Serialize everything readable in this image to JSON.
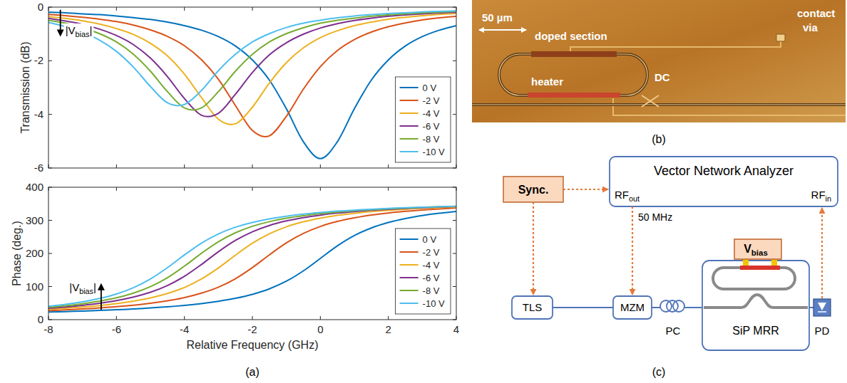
{
  "chart_data": [
    {
      "type": "line",
      "y_label": "Transmission (dB)",
      "x": [
        -8,
        -7.5,
        -7,
        -6.5,
        -6,
        -5.5,
        -5,
        -4.5,
        -4,
        -3.5,
        -3,
        -2.5,
        -2,
        -1.5,
        -1,
        -0.5,
        0,
        0.5,
        1,
        1.5,
        2,
        2.5,
        3,
        3.5,
        4
      ],
      "xlim": [
        -8,
        4
      ],
      "xticks": [
        -8,
        -6,
        -4,
        -2,
        0,
        2,
        4
      ],
      "ylim": [
        -6,
        0
      ],
      "yticks": [
        -6,
        -4,
        -2,
        0
      ],
      "grid": false,
      "legend": "lower right",
      "tick_labels": "y",
      "series": [
        {
          "name": "0 V",
          "color": "#0072bd",
          "values": [
            -0.19,
            -0.21,
            -0.25,
            -0.28,
            -0.33,
            -0.39,
            -0.46,
            -0.56,
            -0.69,
            -0.86,
            -1.1,
            -1.45,
            -1.97,
            -2.72,
            -3.79,
            -5.02,
            -5.65,
            -5.02,
            -3.79,
            -2.72,
            -1.97,
            -1.45,
            -1.1,
            -0.86,
            -0.69
          ]
        },
        {
          "name": "-2 V",
          "color": "#d95319",
          "values": [
            -0.27,
            -0.32,
            -0.38,
            -0.45,
            -0.54,
            -0.67,
            -0.85,
            -1.09,
            -1.44,
            -1.96,
            -2.69,
            -3.67,
            -4.6,
            -4.8,
            -4.07,
            -3.06,
            -2.22,
            -1.62,
            -1.21,
            -0.93,
            -0.73,
            -0.59,
            -0.48,
            -0.4,
            -0.34
          ]
        },
        {
          "name": "-4 V",
          "color": "#edb120",
          "values": [
            -0.35,
            -0.42,
            -0.51,
            -0.63,
            -0.8,
            -1.02,
            -1.35,
            -1.82,
            -2.5,
            -3.37,
            -4.18,
            -4.35,
            -3.73,
            -2.83,
            -2.07,
            -1.52,
            -1.14,
            -0.88,
            -0.69,
            -0.56,
            -0.45,
            -0.38,
            -0.32,
            -0.27,
            -0.24
          ]
        },
        {
          "name": "-6 V",
          "color": "#7e2f8e",
          "values": [
            -0.42,
            -0.52,
            -0.64,
            -0.82,
            -1.06,
            -1.4,
            -1.9,
            -2.59,
            -3.41,
            -4.03,
            -3.96,
            -3.25,
            -2.44,
            -1.78,
            -1.33,
            -1.01,
            -0.78,
            -0.62,
            -0.5,
            -0.41,
            -0.34,
            -0.29,
            -0.25,
            -0.22,
            -0.19
          ]
        },
        {
          "name": "-8 V",
          "color": "#77ac30",
          "values": [
            -0.49,
            -0.6,
            -0.77,
            -0.99,
            -1.3,
            -1.76,
            -2.39,
            -3.15,
            -3.76,
            -3.76,
            -3.15,
            -2.39,
            -1.76,
            -1.3,
            -0.99,
            -0.77,
            -0.6,
            -0.49,
            -0.41,
            -0.34,
            -0.29,
            -0.25,
            -0.21,
            -0.19,
            -0.16
          ]
        },
        {
          "name": "-10 V",
          "color": "#4dbeee",
          "values": [
            -0.57,
            -0.73,
            -0.94,
            -1.23,
            -1.65,
            -2.24,
            -2.96,
            -3.57,
            -3.63,
            -3.11,
            -2.37,
            -1.76,
            -1.3,
            -0.99,
            -0.76,
            -0.6,
            -0.49,
            -0.4,
            -0.33,
            -0.28,
            -0.24,
            -0.21,
            -0.18,
            -0.16,
            -0.14
          ]
        }
      ],
      "annotations": [
        {
          "label": {
            "text": "|V",
            "subscript": "bias",
            "suffix": "|"
          },
          "x": -7.65,
          "y_from": -0.1,
          "y_to": -1.1
        }
      ]
    },
    {
      "type": "line",
      "x_label": "Relative Frequency (GHz)",
      "y_label": "Phase (deg.)",
      "x": [
        -8,
        -7.5,
        -7,
        -6.5,
        -6,
        -5.5,
        -5,
        -4.5,
        -4,
        -3.5,
        -3,
        -2.5,
        -2,
        -1.5,
        -1,
        -0.5,
        0,
        0.5,
        1,
        1.5,
        2,
        2.5,
        3,
        3.5,
        4
      ],
      "xlim": [
        -8,
        4
      ],
      "xticks": [
        -8,
        -6,
        -4,
        -2,
        0,
        2,
        4
      ],
      "ylim": [
        0,
        400
      ],
      "yticks": [
        0,
        100,
        200,
        300,
        400
      ],
      "grid": false,
      "legend": "lower right",
      "series": [
        {
          "name": "0 V",
          "color": "#0072bd",
          "values": [
            23.0,
            24.4,
            25.9,
            27.7,
            29.9,
            32.3,
            35.4,
            38.9,
            43.2,
            48.6,
            55.5,
            64.5,
            76.5,
            93.1,
            116.2,
            147.3,
            185,
            222.7,
            253.8,
            276.9,
            293.5,
            305.5,
            314.5,
            321.4,
            326.8
          ]
        },
        {
          "name": "-2 V",
          "color": "#d95319",
          "values": [
            27.3,
            29.6,
            32.3,
            35.3,
            39.0,
            43.7,
            49.4,
            56.9,
            66.6,
            80.0,
            98.2,
            123.6,
            157.2,
            195.7,
            231.9,
            260.5,
            281.5,
            296.6,
            307.6,
            315.9,
            322.2,
            327.2,
            331.3,
            334.6,
            337.4
          ]
        },
        {
          "name": "-4 V",
          "color": "#edb120",
          "values": [
            31.3,
            34.3,
            38.0,
            42.7,
            48.4,
            55.9,
            65.6,
            79.0,
            97.2,
            122.6,
            156.2,
            194.7,
            230.9,
            259.5,
            280.5,
            295.6,
            306.6,
            314.9,
            321.2,
            326.2,
            330.3,
            333.6,
            336.4,
            338.7,
            340.8
          ]
        },
        {
          "name": "-6 V",
          "color": "#7e2f8e",
          "values": [
            34.3,
            38.3,
            43.2,
            49.4,
            57.5,
            68.3,
            82.8,
            103.0,
            130.9,
            166.5,
            205.1,
            239.3,
            265.5,
            284.5,
            298.2,
            308.2,
            315.8,
            321.8,
            326.5,
            330.4,
            333.5,
            336.2,
            338.4,
            340.4,
            342.1
          ]
        },
        {
          "name": "-8 V",
          "color": "#77ac30",
          "values": [
            37.0,
            41.8,
            47.9,
            55.7,
            66.0,
            80.1,
            99.7,
            126.7,
            161.7,
            200.3,
            235.3,
            262.3,
            281.9,
            296.0,
            306.3,
            314.1,
            320.2,
            325.0,
            329.0,
            332.2,
            335.0,
            337.2,
            339.2,
            340.9,
            342.5
          ]
        },
        {
          "name": "-10 V",
          "color": "#4dbeee",
          "values": [
            40.2,
            46.2,
            53.8,
            63.8,
            77.5,
            96.5,
            122.7,
            156.9,
            195.5,
            231.1,
            259.0,
            279.2,
            293.7,
            304.5,
            312.6,
            318.8,
            323.7,
            327.7,
            330.9,
            333.6,
            336.0,
            338.1,
            339.7,
            341.2,
            342.6
          ]
        }
      ],
      "annotations": [
        {
          "label": {
            "text": "|V",
            "subscript": "bias",
            "suffix": "|"
          },
          "x": -6.45,
          "y_from": 30,
          "y_to": 110
        }
      ]
    }
  ],
  "panel_labels": [
    "(a)",
    "(b)",
    "(c)"
  ],
  "photo": {
    "scale_bar": "50 µm",
    "doped": "doped section",
    "contact": "contact via",
    "heater": "heater",
    "coupler": "DC"
  },
  "diagram": {
    "sync": "Sync.",
    "vna": {
      "title": "Vector Network Analyzer",
      "out": {
        "text": "RF",
        "subscript": "out"
      },
      "in": {
        "text": "RF",
        "subscript": "in"
      }
    },
    "frequency": "50 MHz",
    "tls": "TLS",
    "mzm": "MZM",
    "pc": "PC",
    "mrr": "SiP MRR",
    "bias": {
      "text": "V",
      "subscript": "bias"
    },
    "pd": "PD"
  }
}
